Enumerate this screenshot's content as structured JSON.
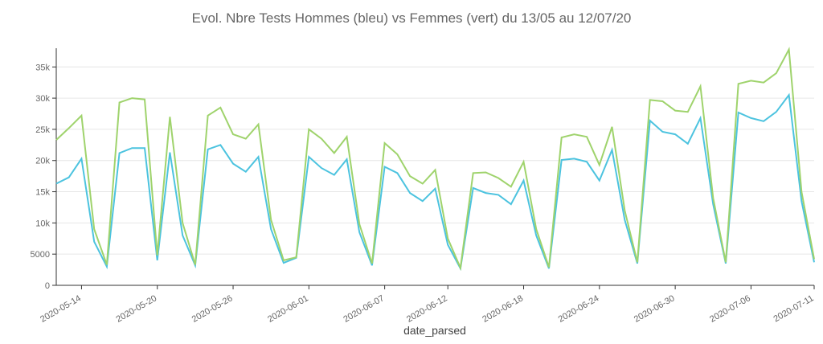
{
  "chart_data": {
    "type": "line",
    "title": "Evol. Nbre Tests Hommes (bleu) vs Femmes (vert) du 13/05 au 12/07/20",
    "x_label": "date_parsed",
    "x": [
      "2020-05-12",
      "2020-05-13",
      "2020-05-14",
      "2020-05-15",
      "2020-05-16",
      "2020-05-17",
      "2020-05-18",
      "2020-05-19",
      "2020-05-20",
      "2020-05-21",
      "2020-05-22",
      "2020-05-23",
      "2020-05-24",
      "2020-05-25",
      "2020-05-26",
      "2020-05-27",
      "2020-05-28",
      "2020-05-29",
      "2020-05-30",
      "2020-05-31",
      "2020-06-01",
      "2020-06-02",
      "2020-06-03",
      "2020-06-04",
      "2020-06-05",
      "2020-06-06",
      "2020-06-07",
      "2020-06-08",
      "2020-06-09",
      "2020-06-10",
      "2020-06-11",
      "2020-06-12",
      "2020-06-13",
      "2020-06-14",
      "2020-06-15",
      "2020-06-16",
      "2020-06-17",
      "2020-06-18",
      "2020-06-19",
      "2020-06-20",
      "2020-06-21",
      "2020-06-22",
      "2020-06-23",
      "2020-06-24",
      "2020-06-25",
      "2020-06-26",
      "2020-06-27",
      "2020-06-28",
      "2020-06-29",
      "2020-06-30",
      "2020-07-01",
      "2020-07-02",
      "2020-07-03",
      "2020-07-04",
      "2020-07-05",
      "2020-07-06",
      "2020-07-07",
      "2020-07-08",
      "2020-07-09",
      "2020-07-10",
      "2020-07-11"
    ],
    "series": [
      {
        "name": "Hommes",
        "color": "#4cc3df",
        "values": [
          16300,
          17300,
          20300,
          7000,
          3000,
          21200,
          22000,
          22000,
          4000,
          21300,
          8000,
          3200,
          21800,
          22500,
          19500,
          18200,
          20600,
          9000,
          3600,
          4400,
          20600,
          18800,
          17700,
          20200,
          8500,
          3200,
          19000,
          18000,
          14800,
          13500,
          15500,
          6500,
          2700,
          15600,
          14800,
          14500,
          13000,
          16800,
          8000,
          2700,
          20100,
          20300,
          19800,
          16800,
          21700,
          10500,
          3500,
          26400,
          24600,
          24200,
          22700,
          26800,
          13000,
          3500,
          27700,
          26800,
          26300,
          27800,
          30500,
          13500,
          3700
        ]
      },
      {
        "name": "Femmes",
        "color": "#9fd36c",
        "values": [
          23300,
          25200,
          27200,
          9000,
          3300,
          29300,
          30000,
          29800,
          4800,
          27000,
          10000,
          3300,
          27200,
          28500,
          24200,
          23500,
          25800,
          10500,
          4000,
          4500,
          25000,
          23500,
          21200,
          23800,
          9800,
          3500,
          22800,
          21000,
          17500,
          16300,
          18500,
          7500,
          2800,
          18000,
          18100,
          17200,
          15800,
          19800,
          9000,
          2900,
          23700,
          24200,
          23800,
          19300,
          25400,
          12000,
          3700,
          29700,
          29500,
          28000,
          27800,
          31900,
          14000,
          3700,
          32300,
          32800,
          32500,
          34000,
          37800,
          15000,
          4200
        ]
      }
    ],
    "xlim": [
      "2020-05-12",
      "2020-07-11"
    ],
    "xticks": [
      "2020-05-14",
      "2020-05-20",
      "2020-05-26",
      "2020-06-01",
      "2020-06-07",
      "2020-06-12",
      "2020-06-18",
      "2020-06-24",
      "2020-06-30",
      "2020-07-06",
      "2020-07-11"
    ],
    "ylim": [
      0,
      38000
    ],
    "yticks": [
      0,
      5000,
      {
        "value": 10000,
        "label": "10k"
      },
      {
        "value": 15000,
        "label": "15k"
      },
      {
        "value": 20000,
        "label": "20k"
      },
      {
        "value": 25000,
        "label": "25k"
      },
      {
        "value": 30000,
        "label": "30k"
      },
      {
        "value": 35000,
        "label": "35k"
      }
    ],
    "grid": true
  }
}
